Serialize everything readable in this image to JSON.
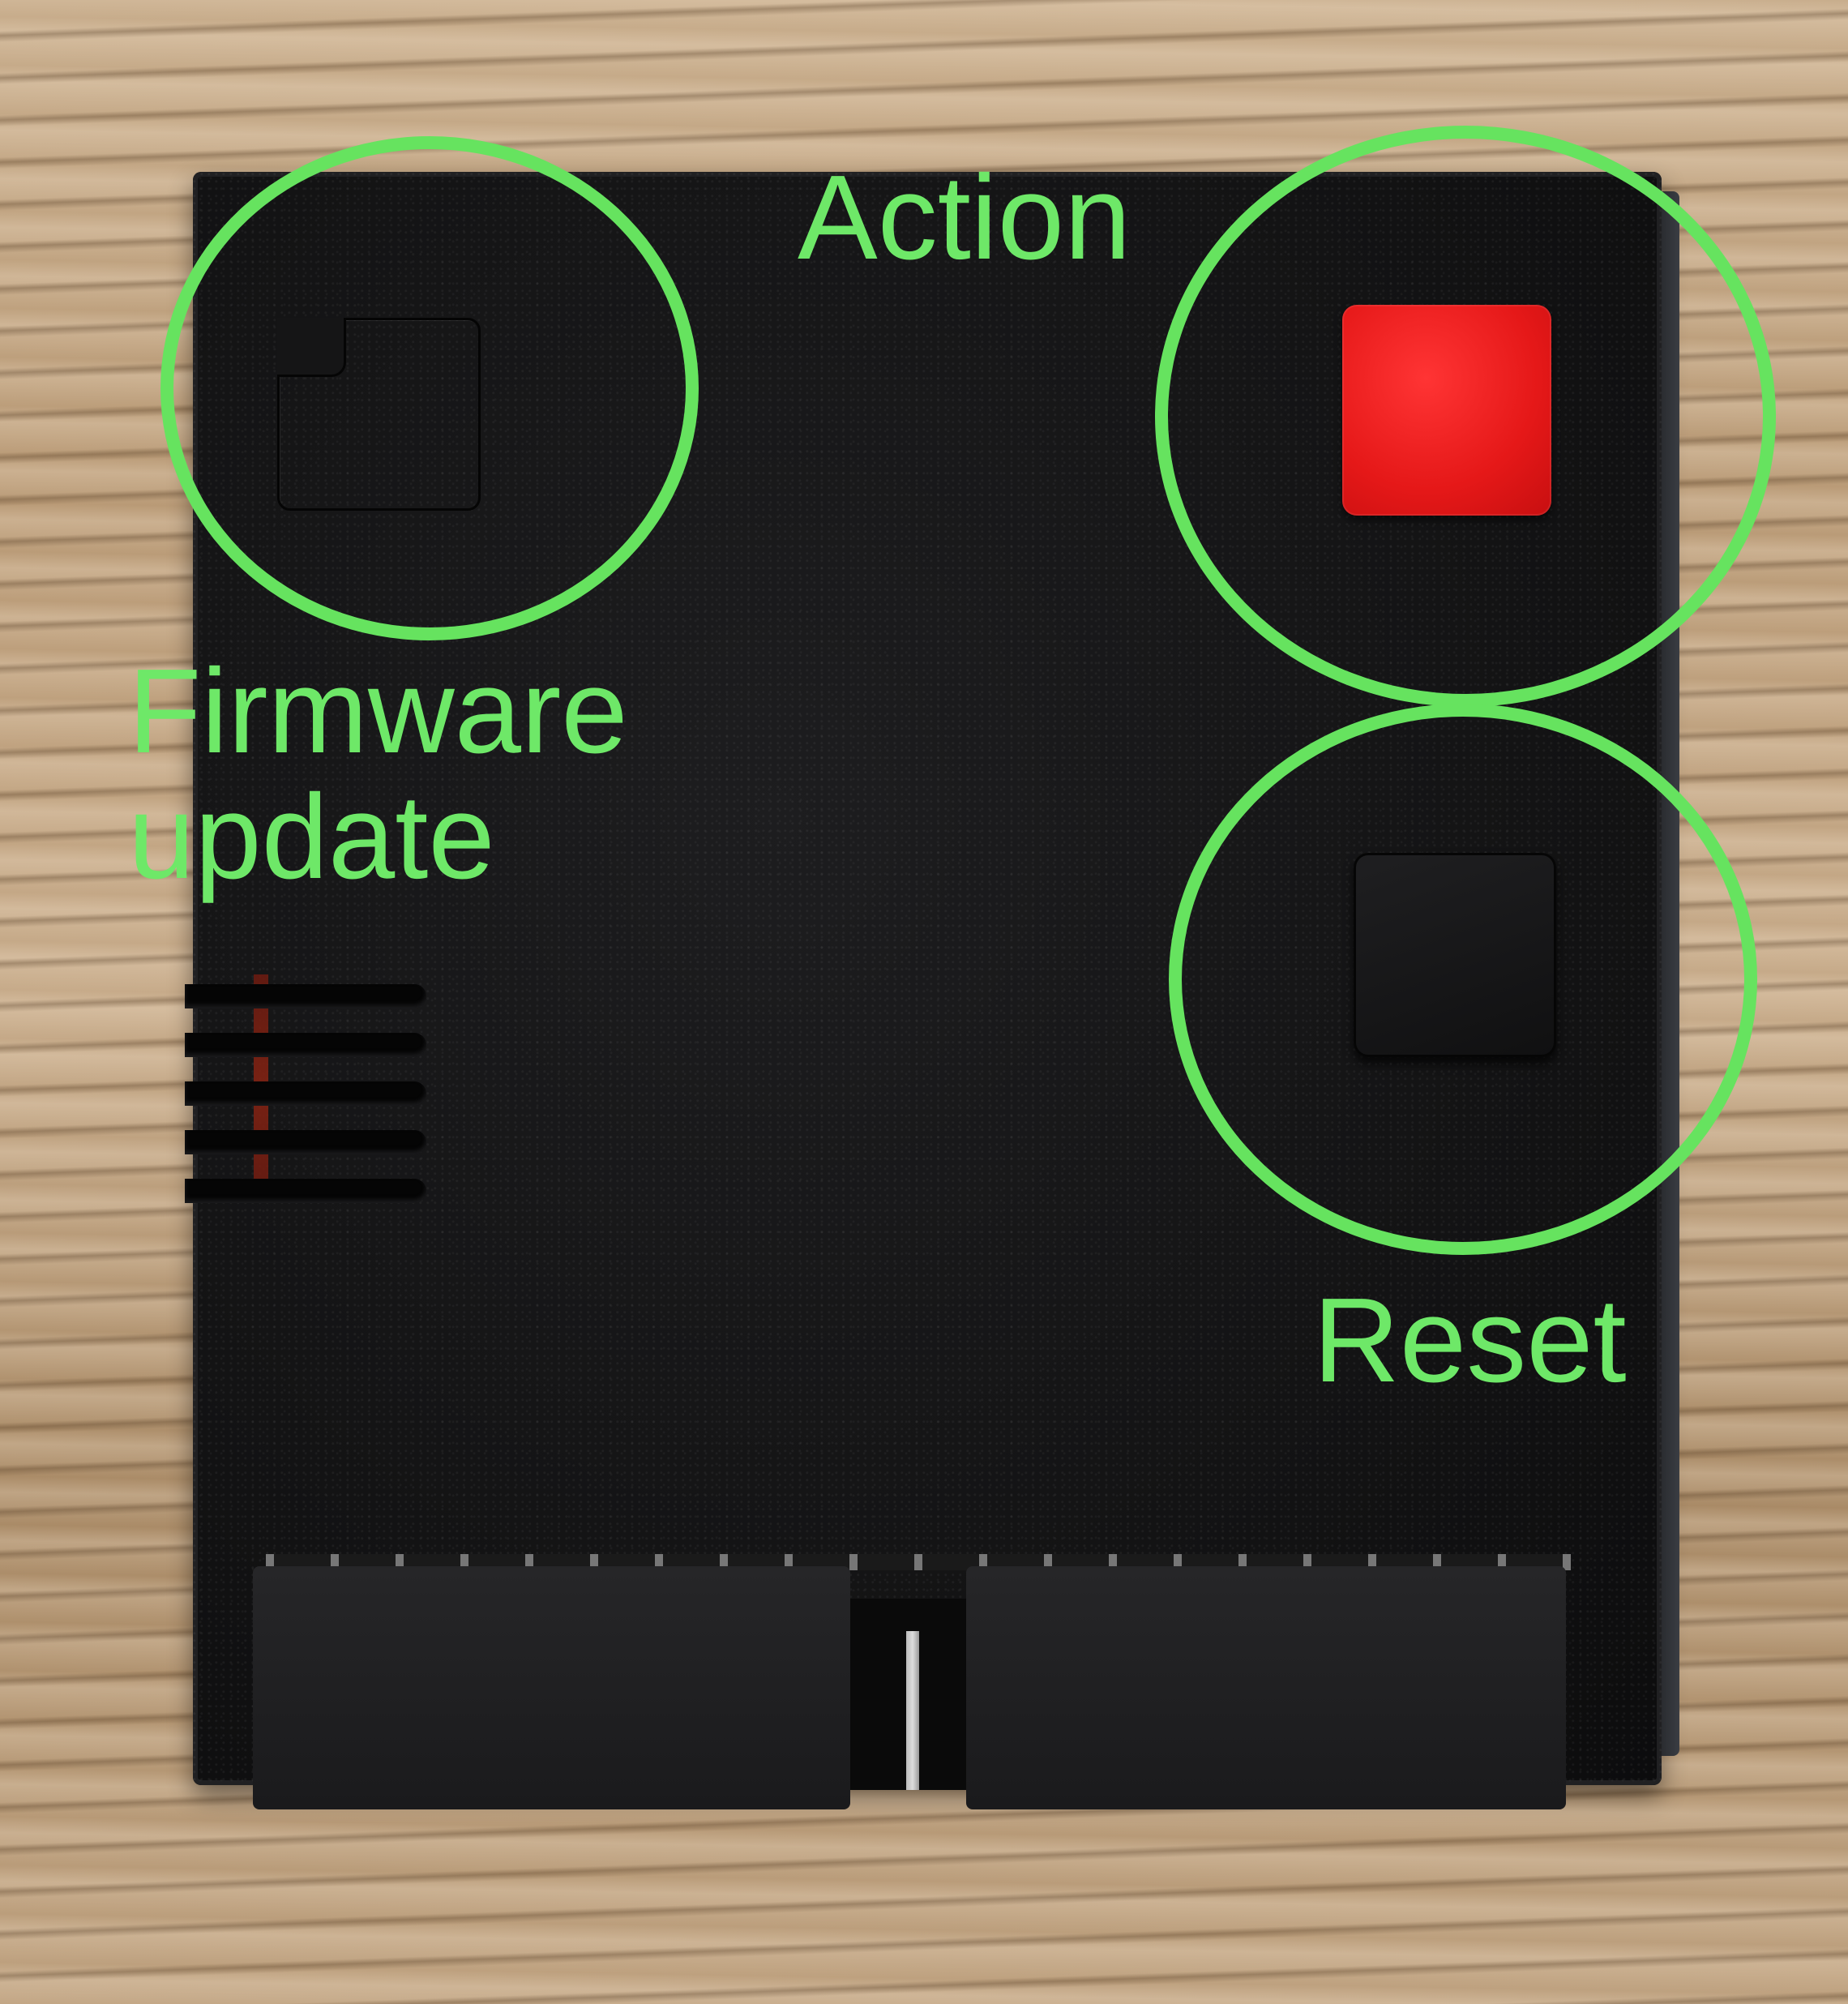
{
  "labels": {
    "action": "Action",
    "firmware_line1": "Firmware",
    "firmware_line2": "update",
    "reset": "Reset"
  },
  "colors": {
    "annotation": "#66e35f",
    "action_button": "#e51818",
    "device_body": "#131314"
  }
}
